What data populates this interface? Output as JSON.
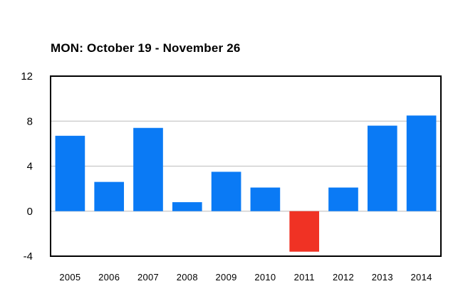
{
  "chart_data": {
    "type": "bar",
    "title": "MON: October 19 - November 26",
    "categories": [
      "2005",
      "2006",
      "2007",
      "2008",
      "2009",
      "2010",
      "2011",
      "2012",
      "2013",
      "2014"
    ],
    "values": [
      6.7,
      2.6,
      7.4,
      0.8,
      3.5,
      2.1,
      -3.6,
      2.1,
      7.6,
      8.5
    ],
    "ylim": [
      -4,
      12
    ],
    "yticks": [
      -4,
      0,
      4,
      8,
      12
    ],
    "grid": true,
    "colors": {
      "positive": "#0a7af5",
      "negative": "#f03224",
      "grid": "#c8c8c8",
      "frame": "#000000"
    }
  }
}
